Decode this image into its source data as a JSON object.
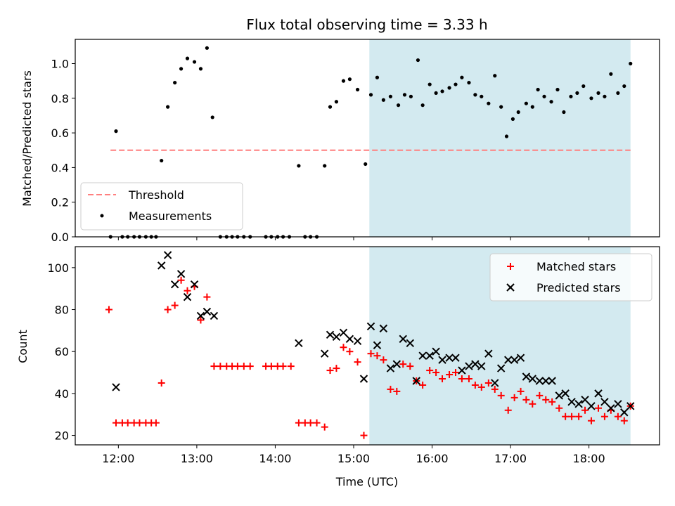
{
  "colors": {
    "shade": "#d3eaf0",
    "threshold": "#ff7f7f",
    "matched": "#ff0000",
    "predicted": "#000000",
    "measurements": "#000000"
  },
  "chart_data": [
    {
      "type": "scatter",
      "title": "Flux total observing time = 3.33 h",
      "ylabel": "Matched/Predicted stars",
      "ylim": [
        0,
        1.14
      ],
      "yticks": [
        0.0,
        0.2,
        0.4,
        0.6,
        0.8,
        1.0
      ],
      "ytick_labels": [
        "0.0",
        "0.2",
        "0.4",
        "0.6",
        "0.8",
        "1.0"
      ],
      "xlim_hours": [
        11.45,
        18.9
      ],
      "xticks_hours": [
        12,
        13,
        14,
        15,
        16,
        17,
        18
      ],
      "shaded_span_hours": [
        15.2,
        18.53
      ],
      "threshold": {
        "name": "Threshold",
        "y": 0.5,
        "x_range_hours": [
          11.9,
          18.53
        ]
      },
      "legend": {
        "placement": "lower-left",
        "entries": [
          "Threshold",
          "Measurements"
        ]
      },
      "series": [
        {
          "name": "Measurements",
          "points": [
            [
              11.9,
              0.0
            ],
            [
              11.97,
              0.61
            ],
            [
              12.05,
              0.0
            ],
            [
              12.12,
              0.0
            ],
            [
              12.2,
              0.0
            ],
            [
              12.27,
              0.0
            ],
            [
              12.35,
              0.0
            ],
            [
              12.42,
              0.0
            ],
            [
              12.48,
              0.0
            ],
            [
              12.55,
              0.44
            ],
            [
              12.63,
              0.75
            ],
            [
              12.72,
              0.89
            ],
            [
              12.8,
              0.97
            ],
            [
              12.88,
              1.03
            ],
            [
              12.97,
              1.01
            ],
            [
              13.05,
              0.97
            ],
            [
              13.13,
              1.09
            ],
            [
              13.2,
              0.69
            ],
            [
              13.3,
              0.0
            ],
            [
              13.38,
              0.0
            ],
            [
              13.45,
              0.0
            ],
            [
              13.52,
              0.0
            ],
            [
              13.6,
              0.0
            ],
            [
              13.68,
              0.0
            ],
            [
              13.88,
              0.0
            ],
            [
              13.95,
              0.0
            ],
            [
              14.03,
              0.0
            ],
            [
              14.1,
              0.0
            ],
            [
              14.18,
              0.0
            ],
            [
              14.3,
              0.41
            ],
            [
              14.38,
              0.0
            ],
            [
              14.45,
              0.0
            ],
            [
              14.53,
              0.0
            ],
            [
              14.63,
              0.41
            ],
            [
              14.7,
              0.75
            ],
            [
              14.78,
              0.78
            ],
            [
              14.87,
              0.9
            ],
            [
              14.95,
              0.91
            ],
            [
              15.05,
              0.85
            ],
            [
              15.15,
              0.42
            ],
            [
              15.22,
              0.82
            ],
            [
              15.3,
              0.92
            ],
            [
              15.38,
              0.79
            ],
            [
              15.47,
              0.81
            ],
            [
              15.57,
              0.76
            ],
            [
              15.65,
              0.82
            ],
            [
              15.73,
              0.81
            ],
            [
              15.82,
              1.02
            ],
            [
              15.88,
              0.76
            ],
            [
              15.97,
              0.88
            ],
            [
              16.05,
              0.83
            ],
            [
              16.13,
              0.84
            ],
            [
              16.22,
              0.86
            ],
            [
              16.3,
              0.88
            ],
            [
              16.38,
              0.92
            ],
            [
              16.47,
              0.89
            ],
            [
              16.55,
              0.82
            ],
            [
              16.63,
              0.81
            ],
            [
              16.72,
              0.77
            ],
            [
              16.8,
              0.93
            ],
            [
              16.88,
              0.75
            ],
            [
              16.95,
              0.58
            ],
            [
              17.03,
              0.68
            ],
            [
              17.1,
              0.72
            ],
            [
              17.2,
              0.77
            ],
            [
              17.28,
              0.75
            ],
            [
              17.35,
              0.85
            ],
            [
              17.43,
              0.81
            ],
            [
              17.52,
              0.78
            ],
            [
              17.6,
              0.85
            ],
            [
              17.68,
              0.72
            ],
            [
              17.77,
              0.81
            ],
            [
              17.85,
              0.83
            ],
            [
              17.93,
              0.87
            ],
            [
              18.03,
              0.8
            ],
            [
              18.12,
              0.83
            ],
            [
              18.2,
              0.81
            ],
            [
              18.28,
              0.94
            ],
            [
              18.37,
              0.83
            ],
            [
              18.45,
              0.87
            ],
            [
              18.53,
              1.0
            ]
          ]
        }
      ]
    },
    {
      "type": "scatter",
      "xlabel": "Time (UTC)",
      "ylabel": "Count",
      "ylim": [
        15.5,
        110
      ],
      "yticks": [
        20,
        40,
        60,
        80,
        100
      ],
      "ytick_labels": [
        "20",
        "40",
        "60",
        "80",
        "100"
      ],
      "xlim_hours": [
        11.45,
        18.9
      ],
      "xticks_hours": [
        12,
        13,
        14,
        15,
        16,
        17,
        18
      ],
      "xtick_labels": [
        "12:00",
        "13:00",
        "14:00",
        "15:00",
        "16:00",
        "17:00",
        "18:00"
      ],
      "shaded_span_hours": [
        15.2,
        18.53
      ],
      "legend": {
        "placement": "upper-right",
        "entries": [
          "Matched stars",
          "Predicted stars"
        ]
      },
      "series": [
        {
          "name": "Matched stars",
          "points": [
            [
              11.88,
              80
            ],
            [
              11.97,
              26
            ],
            [
              12.05,
              26
            ],
            [
              12.12,
              26
            ],
            [
              12.2,
              26
            ],
            [
              12.27,
              26
            ],
            [
              12.35,
              26
            ],
            [
              12.42,
              26
            ],
            [
              12.48,
              26
            ],
            [
              12.55,
              45
            ],
            [
              12.63,
              80
            ],
            [
              12.72,
              82
            ],
            [
              12.8,
              94
            ],
            [
              12.88,
              89
            ],
            [
              12.97,
              91
            ],
            [
              13.05,
              75
            ],
            [
              13.13,
              86
            ],
            [
              13.22,
              53
            ],
            [
              13.3,
              53
            ],
            [
              13.38,
              53
            ],
            [
              13.45,
              53
            ],
            [
              13.52,
              53
            ],
            [
              13.6,
              53
            ],
            [
              13.68,
              53
            ],
            [
              13.88,
              53
            ],
            [
              13.95,
              53
            ],
            [
              14.03,
              53
            ],
            [
              14.1,
              53
            ],
            [
              14.2,
              53
            ],
            [
              14.3,
              26
            ],
            [
              14.38,
              26
            ],
            [
              14.45,
              26
            ],
            [
              14.53,
              26
            ],
            [
              14.63,
              24
            ],
            [
              14.7,
              51
            ],
            [
              14.78,
              52
            ],
            [
              14.87,
              62
            ],
            [
              14.95,
              60
            ],
            [
              15.05,
              55
            ],
            [
              15.13,
              20
            ],
            [
              15.22,
              59
            ],
            [
              15.3,
              58
            ],
            [
              15.38,
              56
            ],
            [
              15.47,
              42
            ],
            [
              15.55,
              41
            ],
            [
              15.63,
              54
            ],
            [
              15.72,
              53
            ],
            [
              15.8,
              46
            ],
            [
              15.88,
              44
            ],
            [
              15.97,
              51
            ],
            [
              16.05,
              50
            ],
            [
              16.13,
              47
            ],
            [
              16.22,
              49
            ],
            [
              16.3,
              50
            ],
            [
              16.38,
              47
            ],
            [
              16.47,
              47
            ],
            [
              16.55,
              44
            ],
            [
              16.63,
              43
            ],
            [
              16.72,
              45
            ],
            [
              16.8,
              42
            ],
            [
              16.88,
              39
            ],
            [
              16.97,
              32
            ],
            [
              17.05,
              38
            ],
            [
              17.13,
              41
            ],
            [
              17.2,
              37
            ],
            [
              17.28,
              35
            ],
            [
              17.37,
              39
            ],
            [
              17.45,
              37
            ],
            [
              17.53,
              36
            ],
            [
              17.62,
              33
            ],
            [
              17.7,
              29
            ],
            [
              17.78,
              29
            ],
            [
              17.87,
              29
            ],
            [
              17.95,
              32
            ],
            [
              18.03,
              27
            ],
            [
              18.12,
              33
            ],
            [
              18.2,
              29
            ],
            [
              18.28,
              32
            ],
            [
              18.37,
              29
            ],
            [
              18.45,
              27
            ],
            [
              18.53,
              34
            ]
          ]
        },
        {
          "name": "Predicted stars",
          "points": [
            [
              11.97,
              43
            ],
            [
              12.55,
              101
            ],
            [
              12.63,
              106
            ],
            [
              12.72,
              92
            ],
            [
              12.8,
              97
            ],
            [
              12.88,
              86
            ],
            [
              12.97,
              92
            ],
            [
              13.05,
              77
            ],
            [
              13.13,
              79
            ],
            [
              13.22,
              77
            ],
            [
              14.3,
              64
            ],
            [
              14.63,
              59
            ],
            [
              14.7,
              68
            ],
            [
              14.78,
              67
            ],
            [
              14.87,
              69
            ],
            [
              14.95,
              66
            ],
            [
              15.05,
              65
            ],
            [
              15.13,
              47
            ],
            [
              15.22,
              72
            ],
            [
              15.3,
              63
            ],
            [
              15.38,
              71
            ],
            [
              15.47,
              52
            ],
            [
              15.55,
              54
            ],
            [
              15.63,
              66
            ],
            [
              15.72,
              64
            ],
            [
              15.8,
              46
            ],
            [
              15.88,
              58
            ],
            [
              15.97,
              58
            ],
            [
              16.05,
              60
            ],
            [
              16.13,
              56
            ],
            [
              16.22,
              57
            ],
            [
              16.3,
              57
            ],
            [
              16.38,
              51
            ],
            [
              16.47,
              53
            ],
            [
              16.55,
              54
            ],
            [
              16.63,
              53
            ],
            [
              16.72,
              59
            ],
            [
              16.8,
              45
            ],
            [
              16.88,
              52
            ],
            [
              16.97,
              56
            ],
            [
              17.05,
              56
            ],
            [
              17.13,
              57
            ],
            [
              17.2,
              48
            ],
            [
              17.28,
              47
            ],
            [
              17.37,
              46
            ],
            [
              17.45,
              46
            ],
            [
              17.53,
              46
            ],
            [
              17.62,
              39
            ],
            [
              17.7,
              40
            ],
            [
              17.78,
              36
            ],
            [
              17.87,
              35
            ],
            [
              17.95,
              37
            ],
            [
              18.03,
              34
            ],
            [
              18.12,
              40
            ],
            [
              18.2,
              36
            ],
            [
              18.28,
              33
            ],
            [
              18.37,
              35
            ],
            [
              18.45,
              31
            ],
            [
              18.53,
              34
            ]
          ]
        }
      ]
    }
  ]
}
